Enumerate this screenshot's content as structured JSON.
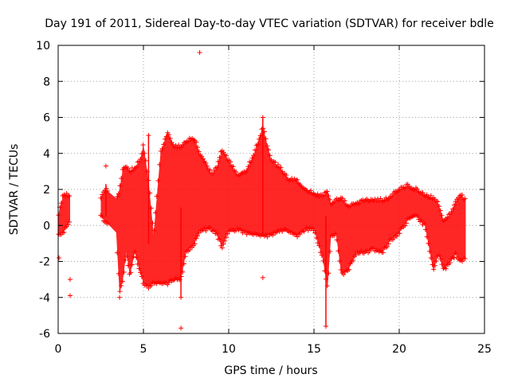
{
  "chart_data": {
    "type": "scatter",
    "title": "Day 191 of 2011, Sidereal Day-to-day VTEC variation (SDTVAR) for receiver bdle",
    "xlabel": "GPS time / hours",
    "ylabel": "SDTVAR / TECUs",
    "xlim": [
      0,
      25
    ],
    "ylim": [
      -6,
      10
    ],
    "xticks": [
      0,
      5,
      10,
      15,
      20,
      25
    ],
    "yticks": [
      -6,
      -4,
      -2,
      0,
      2,
      4,
      6,
      8,
      10
    ],
    "xtick_labels": [
      "0",
      "5",
      "10",
      "15",
      "20",
      "25"
    ],
    "ytick_labels": [
      "-6",
      "-4",
      "-2",
      "0",
      "2",
      "4",
      "6",
      "8",
      "10"
    ],
    "grid": true,
    "marker": "plus",
    "series": [
      {
        "name": "SDTVAR",
        "color": "#ff0000",
        "envelope": {
          "description": "upper and lower bounds of the dense point cloud (hours, TECU)",
          "x": [
            0.0,
            0.3,
            0.7,
            1.0,
            2.5,
            2.8,
            3.4,
            3.6,
            3.8,
            4.0,
            4.2,
            4.5,
            4.8,
            5.0,
            5.3,
            5.6,
            6.0,
            6.4,
            6.8,
            7.2,
            7.5,
            8.0,
            8.3,
            8.6,
            9.0,
            9.3,
            9.6,
            10.0,
            10.5,
            11.0,
            11.5,
            12.0,
            12.5,
            13.0,
            13.5,
            14.0,
            14.5,
            15.0,
            15.5,
            15.8,
            16.0,
            16.3,
            16.6,
            17.0,
            17.5,
            18.0,
            18.5,
            19.0,
            19.5,
            20.0,
            20.5,
            21.0,
            21.5,
            22.0,
            22.3,
            22.6,
            23.0,
            23.3,
            23.6,
            23.9
          ],
          "upper": [
            0.6,
            1.7,
            1.7,
            null,
            1.6,
            2.0,
            1.5,
            2.0,
            3.2,
            3.3,
            3.0,
            3.2,
            3.6,
            4.5,
            2.5,
            -0.5,
            4.0,
            5.2,
            4.4,
            4.4,
            4.7,
            4.8,
            4.0,
            3.6,
            2.8,
            3.2,
            4.2,
            3.6,
            2.8,
            3.0,
            4.0,
            5.5,
            3.6,
            3.2,
            2.6,
            2.5,
            2.0,
            1.8,
            1.6,
            1.9,
            1.2,
            1.4,
            1.5,
            1.1,
            1.2,
            1.4,
            1.4,
            1.4,
            1.6,
            2.0,
            2.2,
            2.0,
            1.7,
            1.5,
            1.2,
            0.3,
            0.6,
            1.3,
            1.7,
            1.4
          ],
          "lower": [
            -0.5,
            -0.4,
            0.3,
            null,
            0.5,
            0.2,
            -0.4,
            -3.8,
            -3.0,
            -1.5,
            -2.8,
            -1.5,
            -2.6,
            -3.2,
            -3.4,
            -3.2,
            -3.2,
            -3.2,
            -3.0,
            -3.0,
            -1.5,
            -1.0,
            -0.3,
            -0.2,
            -0.2,
            -0.5,
            -1.2,
            -0.3,
            -0.2,
            -0.4,
            -0.5,
            -0.6,
            -0.5,
            -0.3,
            -0.3,
            -0.6,
            -0.2,
            -0.2,
            -1.8,
            -3.5,
            -0.6,
            -0.5,
            -2.7,
            -2.5,
            -1.5,
            -1.5,
            -1.3,
            -1.5,
            -0.8,
            -0.4,
            0.3,
            0.5,
            0.0,
            -2.5,
            -1.6,
            -2.5,
            -2.0,
            -1.6,
            -2.0,
            -1.8
          ]
        },
        "outliers": [
          {
            "x": 8.3,
            "y": 9.6
          },
          {
            "x": 12.0,
            "y": 6.0
          },
          {
            "x": 12.0,
            "y": -2.9
          },
          {
            "x": 7.2,
            "y": -5.7
          },
          {
            "x": 15.7,
            "y": -5.6
          },
          {
            "x": 5.3,
            "y": 5.0
          },
          {
            "x": 2.8,
            "y": 3.3
          },
          {
            "x": 0.7,
            "y": -3.0
          },
          {
            "x": 0.7,
            "y": -3.9
          },
          {
            "x": 0.05,
            "y": -1.8
          },
          {
            "x": 3.6,
            "y": -4.0
          },
          {
            "x": 7.2,
            "y": -4.0
          }
        ]
      }
    ]
  }
}
